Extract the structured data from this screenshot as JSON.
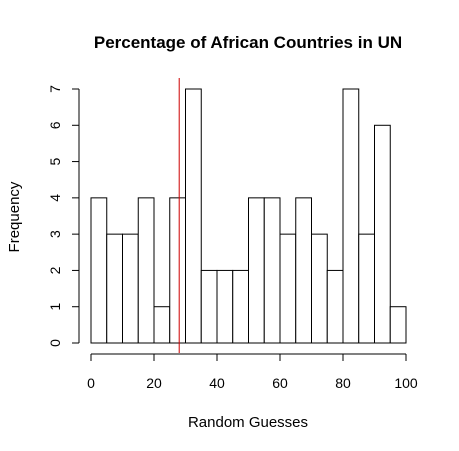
{
  "chart_data": {
    "type": "bar",
    "title": "Percentage of African Countries in UN",
    "xlabel": "Random Guesses",
    "ylabel": "Frequency",
    "bin_edges": [
      0,
      5,
      10,
      15,
      20,
      25,
      30,
      35,
      40,
      45,
      50,
      55,
      60,
      65,
      70,
      75,
      80,
      85,
      90,
      95,
      100
    ],
    "values": [
      4,
      3,
      3,
      4,
      1,
      4,
      7,
      2,
      2,
      2,
      4,
      4,
      3,
      4,
      3,
      2,
      7,
      3,
      6,
      1
    ],
    "xlim": [
      0,
      100
    ],
    "ylim": [
      0,
      7
    ],
    "xticks": [
      0,
      20,
      40,
      60,
      80,
      100
    ],
    "yticks": [
      0,
      1,
      2,
      3,
      4,
      5,
      6,
      7
    ],
    "reference_line": {
      "x": 28,
      "color": "#cc0000"
    },
    "grid": false
  }
}
